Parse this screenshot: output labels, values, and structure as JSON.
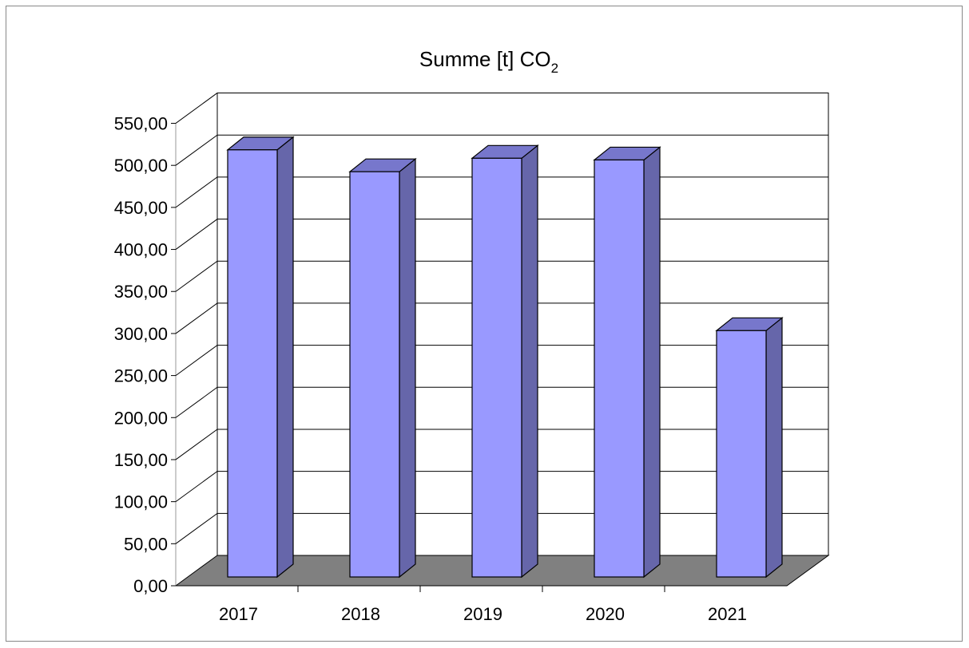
{
  "chart_data": {
    "type": "bar",
    "title": "Summe [t] CO",
    "title_subscript": "2",
    "categories": [
      "2017",
      "2018",
      "2019",
      "2020",
      "2021"
    ],
    "values": [
      508,
      482,
      498,
      496,
      293
    ],
    "ylim": [
      0,
      550
    ],
    "y_ticks": [
      "0,00",
      "50,00",
      "100,00",
      "150,00",
      "200,00",
      "250,00",
      "300,00",
      "350,00",
      "400,00",
      "450,00",
      "500,00",
      "550,00"
    ],
    "grid": true,
    "legend": "none",
    "colors": {
      "bar_front": "#9999ff",
      "bar_side": "#6666aa",
      "bar_top": "#7777cc",
      "floor": "#808080",
      "outline": "#000000",
      "gridline": "#000000"
    }
  }
}
